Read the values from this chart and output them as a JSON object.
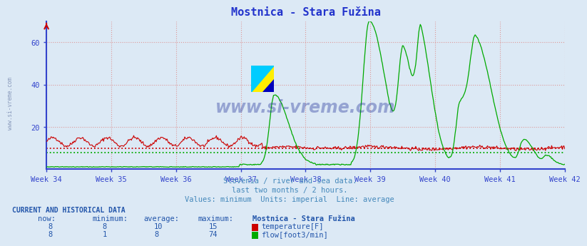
{
  "title": "Mostnica - Stara Fužina",
  "title_color": "#2233cc",
  "bg_color": "#dce9f5",
  "plot_bg_color": "#dce9f5",
  "x_labels": [
    "Week 34",
    "Week 35",
    "Week 36",
    "Week 37",
    "Week 38",
    "Week 39",
    "Week 40",
    "Week 41",
    "Week 42"
  ],
  "ylim": [
    0,
    70
  ],
  "yticks": [
    20,
    40,
    60
  ],
  "grid_color": "#dd9999",
  "temp_color": "#cc0000",
  "flow_color": "#00aa00",
  "temp_avg": 10,
  "flow_avg": 8,
  "axis_color": "#3344cc",
  "tick_color": "#3366aa",
  "subtitle_lines": [
    "Slovenia / river and sea data.",
    "last two months / 2 hours.",
    "Values: minimum  Units: imperial  Line: average"
  ],
  "subtitle_color": "#4488bb",
  "table_header_color": "#2255aa",
  "table_data_color": "#2255aa",
  "watermark_text": "www.si-vreme.com",
  "watermark_color": "#223399",
  "n_points": 672,
  "temp_now": 8,
  "temp_min": 8,
  "temp_avg_val": 10,
  "temp_max": 15,
  "flow_now": 8,
  "flow_min": 1,
  "flow_avg_val": 8,
  "flow_max": 74
}
